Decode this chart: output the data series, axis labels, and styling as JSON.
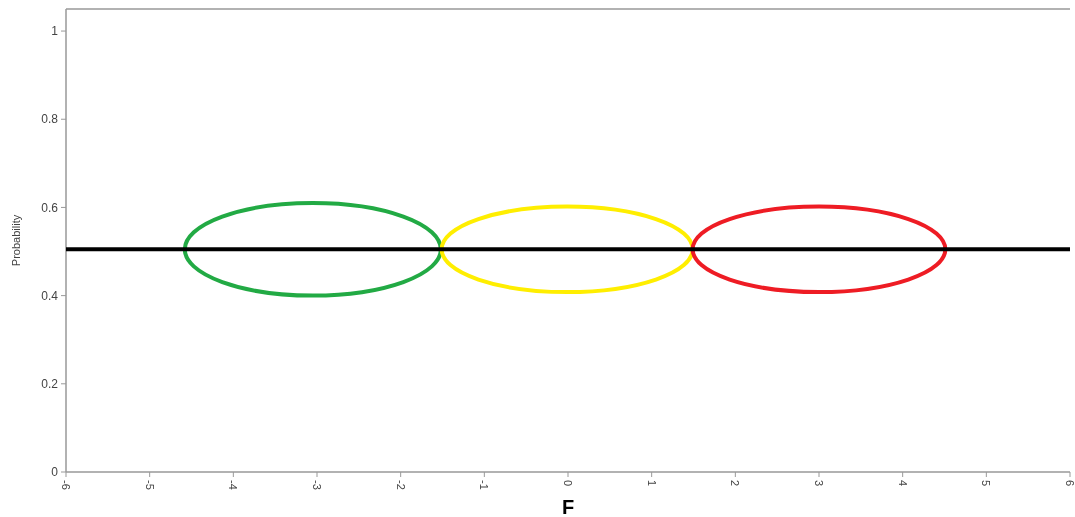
{
  "chart_data": {
    "type": "line",
    "xlabel": "F",
    "ylabel": "Probability",
    "xlim": [
      -6,
      6
    ],
    "xticks": [
      -6,
      -5,
      -4,
      -3,
      -2,
      -1,
      0,
      1,
      2,
      3,
      4,
      5,
      6
    ],
    "ylim": [
      0,
      1.05
    ],
    "yticks": [
      0,
      0.2,
      0.4,
      0.6,
      0.8,
      1
    ],
    "grid": false,
    "marker": "none",
    "line_style": "solid",
    "series": [
      {
        "color": "#000000",
        "x": [
          -6,
          6
        ],
        "values": [
          0.505,
          0.505
        ]
      }
    ]
  }
}
